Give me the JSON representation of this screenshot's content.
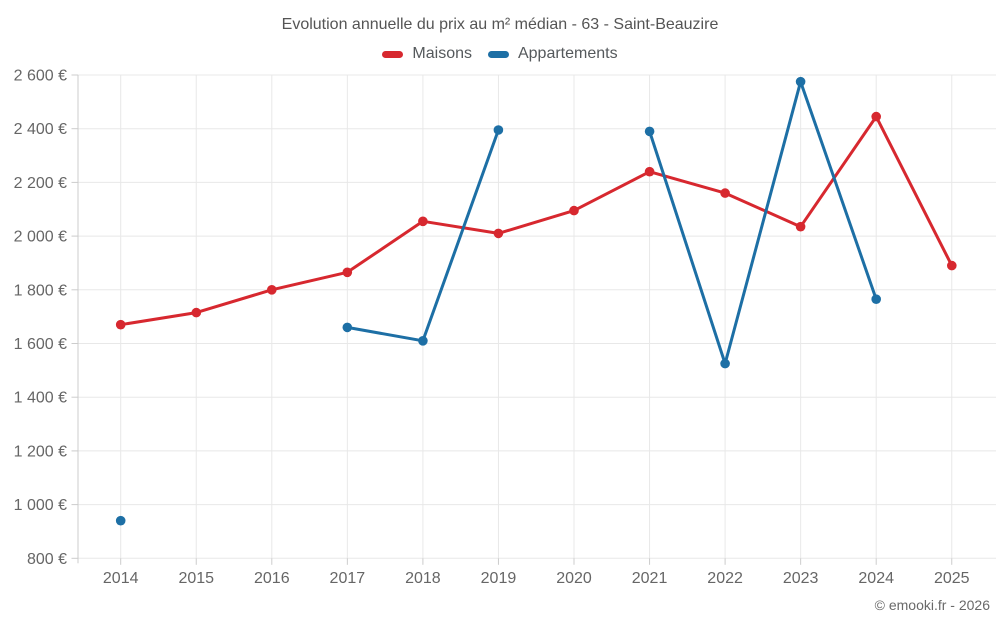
{
  "chart_data": {
    "type": "line",
    "title": "Evolution annuelle du prix au m² médian - 63 - Saint-Beauzire",
    "categories": [
      "2014",
      "2015",
      "2016",
      "2017",
      "2018",
      "2019",
      "2020",
      "2021",
      "2022",
      "2023",
      "2024",
      "2025"
    ],
    "series": [
      {
        "name": "Maisons",
        "color": "#d7282f",
        "values": [
          1670,
          1715,
          1800,
          1865,
          2055,
          2010,
          2095,
          2240,
          2160,
          2035,
          2445,
          1890
        ]
      },
      {
        "name": "Appartements",
        "color": "#1d6fa5",
        "values": [
          940,
          null,
          null,
          1660,
          1610,
          2395,
          null,
          2390,
          1525,
          2575,
          1765,
          null
        ]
      }
    ],
    "ylim": [
      800,
      2600
    ],
    "y_ticks": [
      {
        "value": 800,
        "label": "800 €"
      },
      {
        "value": 1000,
        "label": "1 000 €"
      },
      {
        "value": 1200,
        "label": "1 200 €"
      },
      {
        "value": 1400,
        "label": "1 400 €"
      },
      {
        "value": 1600,
        "label": "1 600 €"
      },
      {
        "value": 1800,
        "label": "1 800 €"
      },
      {
        "value": 2000,
        "label": "2 000 €"
      },
      {
        "value": 2200,
        "label": "2 200 €"
      },
      {
        "value": 2400,
        "label": "2 400 €"
      },
      {
        "value": 2600,
        "label": "2 600 €"
      }
    ],
    "grid": true,
    "legend_position": "top",
    "colors": {
      "grid": "#e8e8e8",
      "axis": "#cccccc",
      "tick_text": "#666666"
    }
  },
  "footer": {
    "copyright": "© emooki.fr - 2026"
  }
}
